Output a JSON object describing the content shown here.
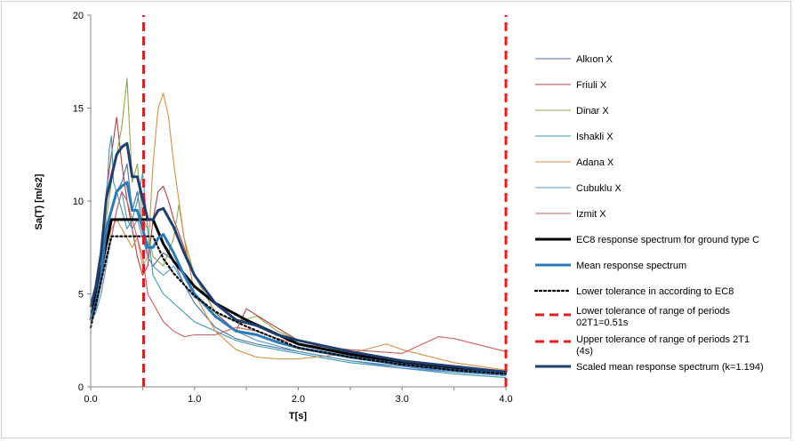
{
  "chart_data": {
    "type": "line",
    "xlabel": "T[s]",
    "ylabel": "Sa(T) [m/s2]",
    "xlim": [
      0,
      4.0
    ],
    "ylim": [
      0,
      20
    ],
    "xticks": [
      "0.0",
      "1.0",
      "2.0",
      "3.0",
      "4.0"
    ],
    "yticks": [
      "0",
      "5",
      "10",
      "15",
      "20"
    ],
    "grid": false,
    "legend_position": "right",
    "series": [
      {
        "name": "Alkıon X",
        "color": "#4a6fa5",
        "style": "thin",
        "x": [
          0,
          0.05,
          0.1,
          0.15,
          0.2,
          0.25,
          0.3,
          0.35,
          0.4,
          0.45,
          0.5,
          0.55,
          0.6,
          0.7,
          0.8,
          0.9,
          1.0,
          1.2,
          1.4,
          1.6,
          1.8,
          2.0,
          2.5,
          3.0,
          3.5,
          4.0
        ],
        "y": [
          3.6,
          4.2,
          5.5,
          7.8,
          9.5,
          10.5,
          11.0,
          12.0,
          9.5,
          10.5,
          8.5,
          7.0,
          6.5,
          7.2,
          6.8,
          5.5,
          4.5,
          3.2,
          2.6,
          2.3,
          2.1,
          1.9,
          1.4,
          1.1,
          0.8,
          0.6
        ]
      },
      {
        "name": "Friuli X",
        "color": "#a84040",
        "style": "thin",
        "x": [
          0,
          0.05,
          0.1,
          0.15,
          0.2,
          0.25,
          0.3,
          0.35,
          0.4,
          0.45,
          0.5,
          0.55,
          0.6,
          0.65,
          0.7,
          0.75,
          0.8,
          0.9,
          1.0,
          1.2,
          1.4,
          1.5,
          1.7,
          2.0,
          2.5,
          3.0,
          3.5,
          4.0
        ],
        "y": [
          3.8,
          5.0,
          7.5,
          10.5,
          12.5,
          14.5,
          12.0,
          10.0,
          8.5,
          7.0,
          6.0,
          6.5,
          9.0,
          10.5,
          10.8,
          10.0,
          9.0,
          7.5,
          6.0,
          4.0,
          3.0,
          4.2,
          3.5,
          2.5,
          1.8,
          1.3,
          1.0,
          0.8
        ]
      },
      {
        "name": "Dinar X",
        "color": "#8faa4a",
        "style": "thin",
        "x": [
          0,
          0.05,
          0.1,
          0.15,
          0.2,
          0.25,
          0.3,
          0.35,
          0.4,
          0.45,
          0.5,
          0.55,
          0.6,
          0.7,
          0.8,
          0.85,
          0.9,
          1.0,
          1.2,
          1.4,
          1.6,
          1.8,
          2.0,
          2.5,
          3.0,
          3.5,
          4.0
        ],
        "y": [
          3.6,
          4.5,
          6.5,
          9.0,
          11.0,
          12.5,
          14.0,
          16.6,
          11.0,
          12.0,
          9.0,
          8.5,
          7.0,
          6.5,
          8.0,
          9.8,
          8.0,
          6.0,
          4.0,
          3.5,
          3.8,
          3.0,
          2.5,
          1.8,
          1.4,
          1.0,
          0.8
        ]
      },
      {
        "name": "Ishakli X",
        "color": "#3a9ab0",
        "style": "thin",
        "x": [
          0,
          0.05,
          0.1,
          0.15,
          0.18,
          0.2,
          0.22,
          0.25,
          0.3,
          0.35,
          0.4,
          0.45,
          0.5,
          0.55,
          0.6,
          0.7,
          0.8,
          0.9,
          1.0,
          1.2,
          1.4,
          1.6,
          1.8,
          2.0,
          2.5,
          3.0,
          3.5,
          4.0
        ],
        "y": [
          3.5,
          4.5,
          6.0,
          10.0,
          12.8,
          13.5,
          11.0,
          10.5,
          9.5,
          8.5,
          9.0,
          10.0,
          11.5,
          8.5,
          6.0,
          5.0,
          4.5,
          4.0,
          3.5,
          3.0,
          2.5,
          2.2,
          2.0,
          1.8,
          1.3,
          1.0,
          0.7,
          0.5
        ]
      },
      {
        "name": "Adana X",
        "color": "#d4904a",
        "style": "thin",
        "x": [
          0,
          0.05,
          0.1,
          0.15,
          0.2,
          0.25,
          0.3,
          0.35,
          0.4,
          0.45,
          0.5,
          0.55,
          0.6,
          0.65,
          0.7,
          0.75,
          0.8,
          0.9,
          1.0,
          1.2,
          1.4,
          1.6,
          1.8,
          2.0,
          2.5,
          2.85,
          3.0,
          3.5,
          4.0
        ],
        "y": [
          3.6,
          4.5,
          6.0,
          7.5,
          8.5,
          9.0,
          8.5,
          8.0,
          7.5,
          8.0,
          6.5,
          7.0,
          12.0,
          15.0,
          15.8,
          14.5,
          12.0,
          8.0,
          5.0,
          3.0,
          2.0,
          1.6,
          1.5,
          1.5,
          1.8,
          2.3,
          2.0,
          1.3,
          0.9
        ]
      },
      {
        "name": "Cubuklu X",
        "color": "#5a90c8",
        "style": "thin",
        "x": [
          0,
          0.05,
          0.1,
          0.15,
          0.2,
          0.25,
          0.3,
          0.35,
          0.4,
          0.45,
          0.5,
          0.55,
          0.6,
          0.7,
          0.8,
          0.9,
          1.0,
          1.1,
          1.2,
          1.4,
          1.6,
          1.8,
          2.0,
          2.5,
          3.0,
          3.5,
          4.0
        ],
        "y": [
          3.5,
          4.0,
          5.0,
          6.5,
          8.0,
          9.5,
          10.5,
          9.0,
          8.5,
          9.0,
          8.0,
          7.0,
          6.5,
          6.0,
          6.5,
          5.5,
          4.8,
          4.5,
          3.8,
          3.0,
          2.5,
          2.2,
          1.9,
          1.4,
          1.0,
          0.8,
          0.6
        ]
      },
      {
        "name": "Izmit X",
        "color": "#c86060",
        "style": "thin",
        "x": [
          0,
          0.05,
          0.1,
          0.15,
          0.2,
          0.25,
          0.3,
          0.35,
          0.4,
          0.45,
          0.5,
          0.55,
          0.6,
          0.7,
          0.8,
          0.9,
          1.0,
          1.2,
          1.4,
          1.6,
          1.8,
          2.0,
          2.5,
          3.0,
          3.35,
          3.5,
          4.0
        ],
        "y": [
          3.6,
          4.5,
          5.5,
          7.0,
          8.0,
          9.5,
          10.5,
          10.0,
          9.0,
          8.0,
          7.0,
          5.0,
          4.5,
          3.5,
          3.0,
          2.7,
          2.8,
          2.8,
          3.2,
          3.0,
          2.6,
          2.3,
          2.0,
          1.8,
          2.7,
          2.6,
          1.9
        ]
      },
      {
        "name": "EC8 response spectrum for ground type C",
        "color": "#000000",
        "style": "thick",
        "x": [
          0,
          0.1,
          0.2,
          0.3,
          0.4,
          0.5,
          0.6,
          0.7,
          0.8,
          1.0,
          1.2,
          1.5,
          2.0,
          2.5,
          3.0,
          3.5,
          4.0
        ],
        "y": [
          3.6,
          6.3,
          9.0,
          9.0,
          9.0,
          9.0,
          9.0,
          7.7,
          6.75,
          5.4,
          4.5,
          3.6,
          2.3,
          1.75,
          1.3,
          1.0,
          0.8
        ]
      },
      {
        "name": "Mean response spectrum",
        "color": "#2a7ab8",
        "style": "thick",
        "x": [
          0,
          0.05,
          0.1,
          0.15,
          0.2,
          0.25,
          0.3,
          0.35,
          0.4,
          0.45,
          0.5,
          0.55,
          0.6,
          0.65,
          0.7,
          0.8,
          0.9,
          1.0,
          1.2,
          1.4,
          1.6,
          1.8,
          2.0,
          2.5,
          3.0,
          3.5,
          4.0
        ],
        "y": [
          3.6,
          4.5,
          6.0,
          8.5,
          9.5,
          10.5,
          10.8,
          11.0,
          9.5,
          9.5,
          8.5,
          7.5,
          7.5,
          8.0,
          8.2,
          7.2,
          6.0,
          5.0,
          3.8,
          3.0,
          2.8,
          2.4,
          2.1,
          1.6,
          1.2,
          0.9,
          0.7
        ]
      },
      {
        "name": "Lower tolerance in according to EC8",
        "color": "#000000",
        "style": "dotted",
        "x": [
          0,
          0.1,
          0.2,
          0.3,
          0.4,
          0.5,
          0.6,
          0.7,
          0.8,
          1.0,
          1.2,
          1.5,
          2.0,
          2.5,
          3.0,
          3.5,
          4.0
        ],
        "y": [
          3.2,
          5.7,
          8.1,
          8.1,
          8.1,
          8.1,
          8.1,
          6.9,
          6.1,
          4.9,
          4.05,
          3.25,
          2.1,
          1.6,
          1.2,
          0.9,
          0.7
        ]
      },
      {
        "name": "Lower tolerance of range of periods 02T1=0.51s",
        "color": "#e02020",
        "style": "dashed-vertical",
        "x": [
          0.51,
          0.51
        ],
        "y": [
          0,
          20
        ]
      },
      {
        "name": "Upper tolerance of range of periods 2T1 (4s)",
        "color": "#e02020",
        "style": "dashed-vertical",
        "x": [
          4.0,
          4.0
        ],
        "y": [
          0,
          20
        ]
      },
      {
        "name": "Scaled mean response spectrum (k=1.194)",
        "color": "#1f3e6e",
        "style": "thick",
        "x": [
          0,
          0.05,
          0.1,
          0.15,
          0.2,
          0.25,
          0.3,
          0.35,
          0.4,
          0.45,
          0.5,
          0.55,
          0.6,
          0.65,
          0.7,
          0.8,
          0.9,
          1.0,
          1.2,
          1.4,
          1.6,
          1.8,
          2.0,
          2.5,
          3.0,
          3.5,
          4.0
        ],
        "y": [
          4.3,
          5.4,
          7.2,
          10.1,
          11.3,
          12.5,
          12.9,
          13.1,
          11.3,
          11.3,
          10.1,
          9.0,
          9.0,
          9.5,
          9.6,
          8.6,
          7.2,
          6.0,
          4.5,
          3.6,
          3.3,
          2.8,
          2.5,
          1.9,
          1.4,
          1.1,
          0.8
        ]
      }
    ]
  }
}
